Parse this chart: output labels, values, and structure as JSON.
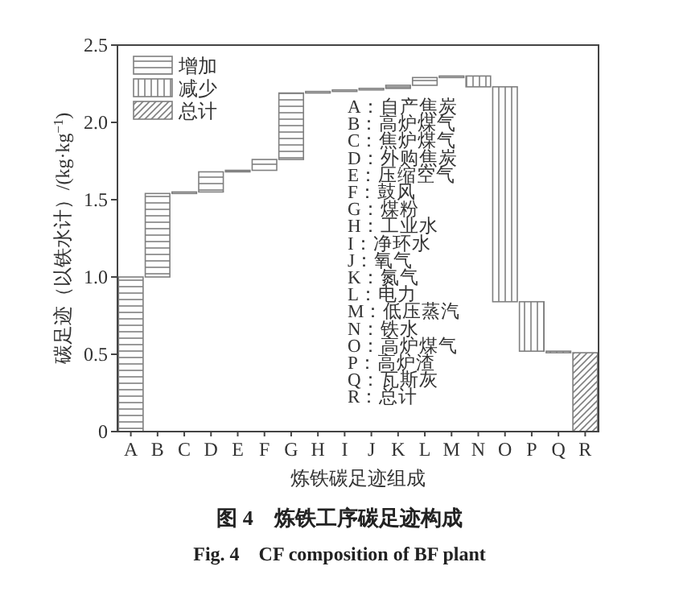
{
  "chart_data": {
    "type": "bar",
    "title": "图 4　炼铁工序碳足迹构成",
    "subtitle": "Fig. 4　CF composition of BF plant",
    "xlabel": "炼铁碳足迹组成",
    "ylabel": "碳足迹（以铁水计）/(kg·kg$^{−1}$)",
    "categories": [
      "A",
      "B",
      "C",
      "D",
      "E",
      "F",
      "G",
      "H",
      "I",
      "J",
      "K",
      "L",
      "M",
      "N",
      "O",
      "P",
      "Q",
      "R"
    ],
    "series": [
      {
        "name": "增加",
        "color": "#7f7f7f",
        "base": [
          0,
          1.0,
          1.54,
          1.55,
          1.68,
          1.69,
          1.76,
          2.19,
          2.2,
          2.21,
          2.22,
          2.24,
          2.29,
          null,
          null,
          null,
          null,
          null
        ],
        "values": [
          1.0,
          0.54,
          0.01,
          0.13,
          0.01,
          0.07,
          0.43,
          0.01,
          0.01,
          0.01,
          0.02,
          0.05,
          0.01,
          null,
          null,
          null,
          null,
          null
        ]
      },
      {
        "name": "减少",
        "color": "#7f7f7f",
        "base": [
          null,
          null,
          null,
          null,
          null,
          null,
          null,
          null,
          null,
          null,
          null,
          null,
          null,
          2.23,
          0.84,
          0.52,
          0.51,
          null
        ],
        "values": [
          null,
          null,
          null,
          null,
          null,
          null,
          null,
          null,
          null,
          null,
          null,
          null,
          null,
          0.07,
          1.39,
          0.32,
          0.01,
          null
        ]
      },
      {
        "name": "总计",
        "color": "#7f7f7f",
        "base": [
          null,
          null,
          null,
          null,
          null,
          null,
          null,
          null,
          null,
          null,
          null,
          null,
          null,
          null,
          null,
          null,
          null,
          0
        ],
        "values": [
          null,
          null,
          null,
          null,
          null,
          null,
          null,
          null,
          null,
          null,
          null,
          null,
          null,
          null,
          null,
          null,
          null,
          0.51
        ]
      }
    ],
    "ylim": [
      0,
      2.5
    ],
    "yticks": [
      0,
      {
        "value": 0.5,
        "label": "0.5"
      },
      {
        "value": 1,
        "label": "1.0"
      },
      {
        "value": 1.5,
        "label": "1.5"
      },
      {
        "value": 2,
        "label": "2.0"
      },
      {
        "value": 2.5,
        "label": "2.5"
      }
    ],
    "legend": "top left",
    "grid": false,
    "annotations": [
      "A：自产焦炭",
      "B：高炉煤气",
      "C：焦炉煤气",
      "D：外购焦炭",
      "E：压缩空气",
      "F：鼓风",
      "G：煤粉",
      "H：工业水",
      "I：净环水",
      "J：氧气",
      "K：氮气",
      "L：电力",
      "M：低压蒸汽",
      "N：铁水",
      "O：高炉煤气",
      "P：高炉渣",
      "Q：瓦斯灰",
      "R：总计"
    ]
  }
}
